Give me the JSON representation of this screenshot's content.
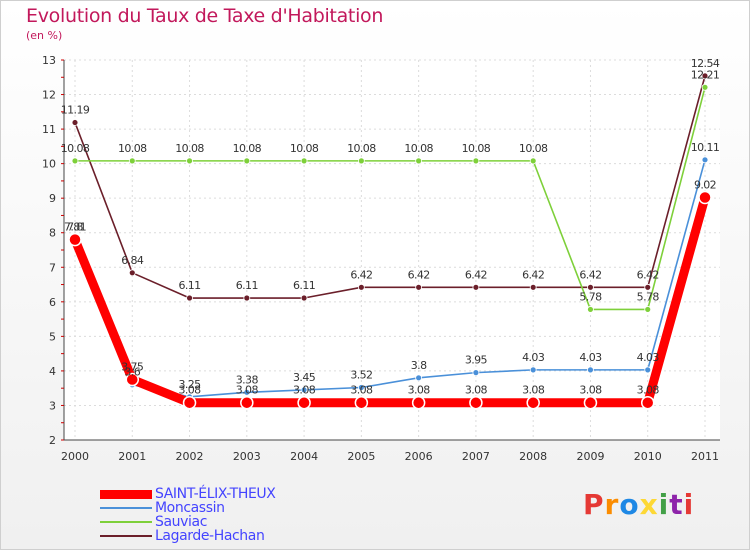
{
  "header": {
    "title": "Evolution du Taux de Taxe d'Habitation",
    "subtitle": "(en %)"
  },
  "brand": {
    "text": "Proxiti",
    "colors": [
      "#e53935",
      "#fb8c00",
      "#1e88e5",
      "#fdd835",
      "#43a047",
      "#8e24aa",
      "#e53935"
    ]
  },
  "chart_data": {
    "type": "line",
    "x": [
      "2000",
      "2001",
      "2002",
      "2003",
      "2004",
      "2005",
      "2006",
      "2007",
      "2008",
      "2009",
      "2010",
      "2011"
    ],
    "ylim": [
      2,
      13
    ],
    "yticks": [
      "2",
      "3",
      "4",
      "5",
      "6",
      "7",
      "8",
      "9",
      "10",
      "11",
      "12",
      "13"
    ],
    "grid": true,
    "legend_position": "bottom-left",
    "series": [
      {
        "name": "Lagarde-Hachan",
        "color": "#6b1f2a",
        "values": [
          11.19,
          6.84,
          6.11,
          6.11,
          6.11,
          6.42,
          6.42,
          6.42,
          6.42,
          6.42,
          6.42,
          12.54
        ],
        "labels": [
          "11.19",
          "6.84",
          "6.11",
          "6.11",
          "6.11",
          "6.42",
          "6.42",
          "6.42",
          "6.42",
          "6.42",
          "6.42",
          "12.54"
        ]
      },
      {
        "name": "Sauviac",
        "color": "#7ed03a",
        "values": [
          10.08,
          10.08,
          10.08,
          10.08,
          10.08,
          10.08,
          10.08,
          10.08,
          10.08,
          5.78,
          5.78,
          12.21
        ],
        "labels": [
          "10.08",
          "10.08",
          "10.08",
          "10.08",
          "10.08",
          "10.08",
          "10.08",
          "10.08",
          "10.08",
          "5.78",
          "5.78",
          "12.21"
        ]
      },
      {
        "name": "Moncassin",
        "color": "#4a90d9",
        "values": [
          7.81,
          3.6,
          3.25,
          3.38,
          3.45,
          3.52,
          3.8,
          3.95,
          4.03,
          4.03,
          4.03,
          10.11
        ],
        "labels": [
          "7.81",
          "3.6",
          "3.25",
          "3.38",
          "3.45",
          "3.52",
          "3.8",
          "3.95",
          "4.03",
          "4.03",
          "4.03",
          "10.11"
        ]
      },
      {
        "name": "SAINT-ÉLIX-THEUX",
        "color": "#ff0000",
        "values": [
          7.8,
          3.75,
          3.08,
          3.08,
          3.08,
          3.08,
          3.08,
          3.08,
          3.08,
          3.08,
          3.08,
          9.02
        ],
        "labels": [
          "7.8",
          "3.75",
          "3.08",
          "3.08",
          "3.08",
          "3.08",
          "3.08",
          "3.08",
          "3.08",
          "3.08",
          "3.08",
          "9.02"
        ]
      }
    ],
    "legend_order": [
      "SAINT-ÉLIX-THEUX",
      "Moncassin",
      "Sauviac",
      "Lagarde-Hachan"
    ]
  }
}
